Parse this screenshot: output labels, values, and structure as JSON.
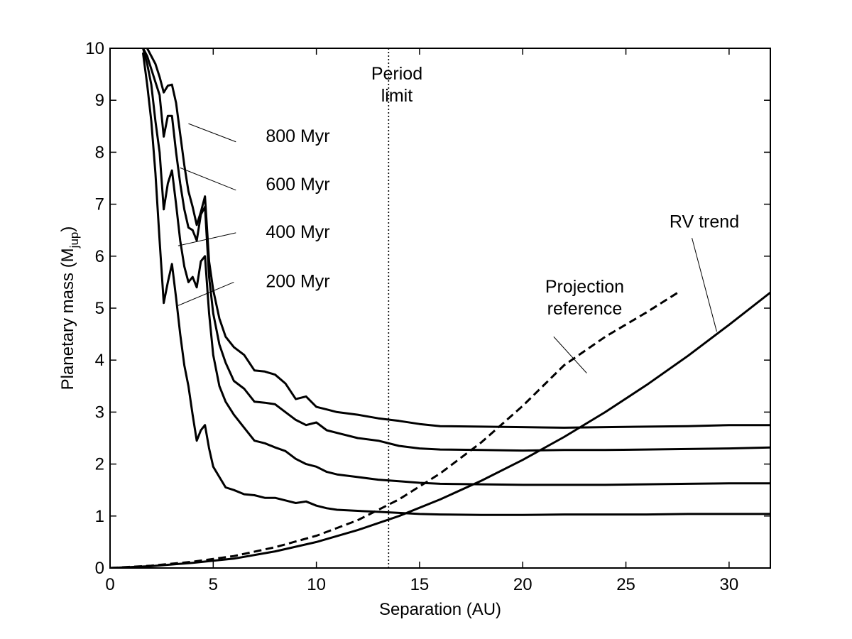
{
  "chart_data": {
    "type": "line",
    "title": "",
    "xlabel": "Separation (AU)",
    "ylabel_main": "Planetary mass (M",
    "ylabel_sub": "jup",
    "ylabel_end": ")",
    "xlim": [
      0,
      32
    ],
    "ylim": [
      0,
      10
    ],
    "xticks": [
      0,
      5,
      10,
      15,
      20,
      25,
      30
    ],
    "yticks": [
      0,
      1,
      2,
      3,
      4,
      5,
      6,
      7,
      8,
      9,
      10
    ],
    "grid": false,
    "series": [
      {
        "name": "800 Myr",
        "style": "solid",
        "x": [
          1.8,
          2.0,
          2.2,
          2.4,
          2.6,
          2.8,
          3.0,
          3.2,
          3.4,
          3.6,
          3.8,
          4.0,
          4.2,
          4.4,
          4.6,
          4.8,
          5.0,
          5.3,
          5.6,
          6.0,
          6.5,
          7.0,
          7.5,
          8.0,
          8.5,
          9.0,
          9.5,
          10.0,
          10.5,
          11.0,
          12.0,
          13.0,
          14.0,
          15.0,
          16.0,
          18.0,
          20.0,
          22.0,
          24.0,
          26.0,
          28.0,
          30.0,
          32.0
        ],
        "y": [
          10.0,
          9.85,
          9.7,
          9.45,
          9.15,
          9.28,
          9.3,
          8.95,
          8.35,
          7.75,
          7.25,
          6.95,
          6.6,
          6.85,
          7.15,
          5.9,
          5.35,
          4.8,
          4.45,
          4.25,
          4.1,
          3.8,
          3.78,
          3.72,
          3.55,
          3.25,
          3.3,
          3.1,
          3.05,
          3.0,
          2.95,
          2.88,
          2.83,
          2.77,
          2.73,
          2.72,
          2.71,
          2.7,
          2.71,
          2.72,
          2.73,
          2.75,
          2.75
        ]
      },
      {
        "name": "600 Myr",
        "style": "solid",
        "x": [
          1.6,
          1.8,
          2.0,
          2.2,
          2.4,
          2.6,
          2.8,
          3.0,
          3.2,
          3.4,
          3.6,
          3.8,
          4.0,
          4.2,
          4.4,
          4.6,
          4.8,
          5.0,
          5.3,
          5.6,
          6.0,
          6.5,
          7.0,
          7.5,
          8.0,
          8.5,
          9.0,
          9.5,
          10.0,
          10.5,
          11.0,
          12.0,
          13.0,
          14.0,
          15.0,
          16.0,
          18.0,
          20.0,
          22.0,
          24.0,
          26.0,
          28.0,
          30.0,
          32.0
        ],
        "y": [
          10.0,
          9.85,
          9.6,
          9.35,
          9.1,
          8.3,
          8.7,
          8.7,
          8.0,
          7.4,
          6.9,
          6.55,
          6.5,
          6.3,
          6.8,
          6.95,
          5.6,
          4.9,
          4.3,
          3.95,
          3.6,
          3.45,
          3.2,
          3.18,
          3.15,
          3.0,
          2.85,
          2.75,
          2.8,
          2.65,
          2.6,
          2.5,
          2.45,
          2.35,
          2.3,
          2.28,
          2.27,
          2.26,
          2.27,
          2.27,
          2.28,
          2.29,
          2.3,
          2.32
        ]
      },
      {
        "name": "400 Myr",
        "style": "solid",
        "x": [
          1.6,
          1.8,
          2.0,
          2.2,
          2.4,
          2.6,
          2.8,
          3.0,
          3.2,
          3.4,
          3.6,
          3.8,
          4.0,
          4.2,
          4.4,
          4.6,
          4.8,
          5.0,
          5.3,
          5.6,
          6.0,
          6.5,
          7.0,
          7.5,
          8.0,
          8.5,
          9.0,
          9.5,
          10.0,
          10.5,
          11.0,
          12.0,
          13.0,
          14.0,
          15.0,
          16.0,
          18.0,
          20.0,
          22.0,
          24.0,
          26.0,
          28.0,
          30.0,
          32.0
        ],
        "y": [
          10.0,
          9.7,
          9.3,
          8.6,
          8.0,
          6.9,
          7.4,
          7.65,
          7.0,
          6.3,
          5.8,
          5.5,
          5.6,
          5.4,
          5.9,
          6.0,
          4.9,
          4.1,
          3.5,
          3.2,
          2.95,
          2.7,
          2.45,
          2.4,
          2.32,
          2.25,
          2.1,
          2.0,
          1.95,
          1.85,
          1.8,
          1.75,
          1.7,
          1.67,
          1.64,
          1.62,
          1.61,
          1.6,
          1.6,
          1.6,
          1.61,
          1.62,
          1.63,
          1.63
        ]
      },
      {
        "name": "200 Myr",
        "style": "solid",
        "x": [
          1.6,
          1.8,
          2.0,
          2.2,
          2.4,
          2.6,
          2.8,
          3.0,
          3.2,
          3.4,
          3.6,
          3.8,
          4.0,
          4.2,
          4.4,
          4.6,
          4.8,
          5.0,
          5.3,
          5.6,
          6.0,
          6.5,
          7.0,
          7.5,
          8.0,
          8.5,
          9.0,
          9.5,
          10.0,
          10.5,
          11.0,
          12.0,
          13.0,
          14.0,
          15.0,
          16.0,
          18.0,
          20.0,
          22.0,
          24.0,
          26.0,
          28.0,
          30.0,
          32.0
        ],
        "y": [
          9.9,
          9.3,
          8.6,
          7.6,
          6.3,
          5.1,
          5.5,
          5.85,
          5.2,
          4.5,
          3.9,
          3.5,
          2.95,
          2.45,
          2.65,
          2.75,
          2.3,
          1.95,
          1.75,
          1.55,
          1.5,
          1.42,
          1.4,
          1.35,
          1.35,
          1.3,
          1.25,
          1.28,
          1.2,
          1.15,
          1.12,
          1.1,
          1.08,
          1.06,
          1.04,
          1.03,
          1.02,
          1.02,
          1.03,
          1.03,
          1.03,
          1.04,
          1.04,
          1.04
        ]
      },
      {
        "name": "RV trend",
        "style": "solid",
        "x": [
          0,
          2,
          4,
          6,
          8,
          10,
          12,
          14,
          16,
          18,
          20,
          22,
          24,
          26,
          28,
          30,
          32
        ],
        "y": [
          0,
          0.035,
          0.1,
          0.18,
          0.32,
          0.5,
          0.73,
          1.0,
          1.32,
          1.68,
          2.08,
          2.52,
          3.0,
          3.52,
          4.08,
          4.68,
          5.3
        ]
      },
      {
        "name": "Projection reference",
        "style": "dashed",
        "x": [
          0,
          2,
          4,
          6,
          8,
          10,
          12,
          14,
          16,
          18,
          20,
          22,
          24,
          26,
          27.6
        ],
        "y": [
          0,
          0.045,
          0.12,
          0.23,
          0.4,
          0.62,
          0.92,
          1.32,
          1.82,
          2.42,
          3.12,
          3.9,
          4.45,
          4.92,
          5.32
        ]
      }
    ],
    "vertical_lines": [
      {
        "name": "Period limit",
        "x": 13.5,
        "style": "dotted"
      }
    ],
    "annotations": [
      {
        "lines": [
          "Period",
          "limit"
        ],
        "x": 13.9,
        "y": 9.4,
        "lead": false
      },
      {
        "lines": [
          "800 Myr"
        ],
        "x": 9.1,
        "y": 8.2,
        "lead": true,
        "to": [
          3.8,
          8.55
        ],
        "from": [
          6.1,
          8.2
        ]
      },
      {
        "lines": [
          "600 Myr"
        ],
        "x": 9.1,
        "y": 7.27,
        "lead": true,
        "to": [
          3.4,
          7.7
        ],
        "from": [
          6.1,
          7.27
        ]
      },
      {
        "lines": [
          "400 Myr"
        ],
        "x": 9.1,
        "y": 6.35,
        "lead": true,
        "to": [
          3.3,
          6.2
        ],
        "from": [
          6.1,
          6.45
        ]
      },
      {
        "lines": [
          "200 Myr"
        ],
        "x": 9.1,
        "y": 5.4,
        "lead": true,
        "to": [
          3.3,
          5.05
        ],
        "from": [
          6.0,
          5.5
        ]
      },
      {
        "lines": [
          "RV trend"
        ],
        "x": 28.8,
        "y": 6.55,
        "lead": true,
        "to": [
          29.4,
          4.55
        ],
        "from": [
          28.2,
          6.35
        ]
      },
      {
        "lines": [
          "Projection",
          "reference"
        ],
        "x": 23.0,
        "y": 5.3,
        "lead": true,
        "to": [
          23.1,
          3.75
        ],
        "from": [
          21.5,
          4.45
        ]
      }
    ]
  }
}
